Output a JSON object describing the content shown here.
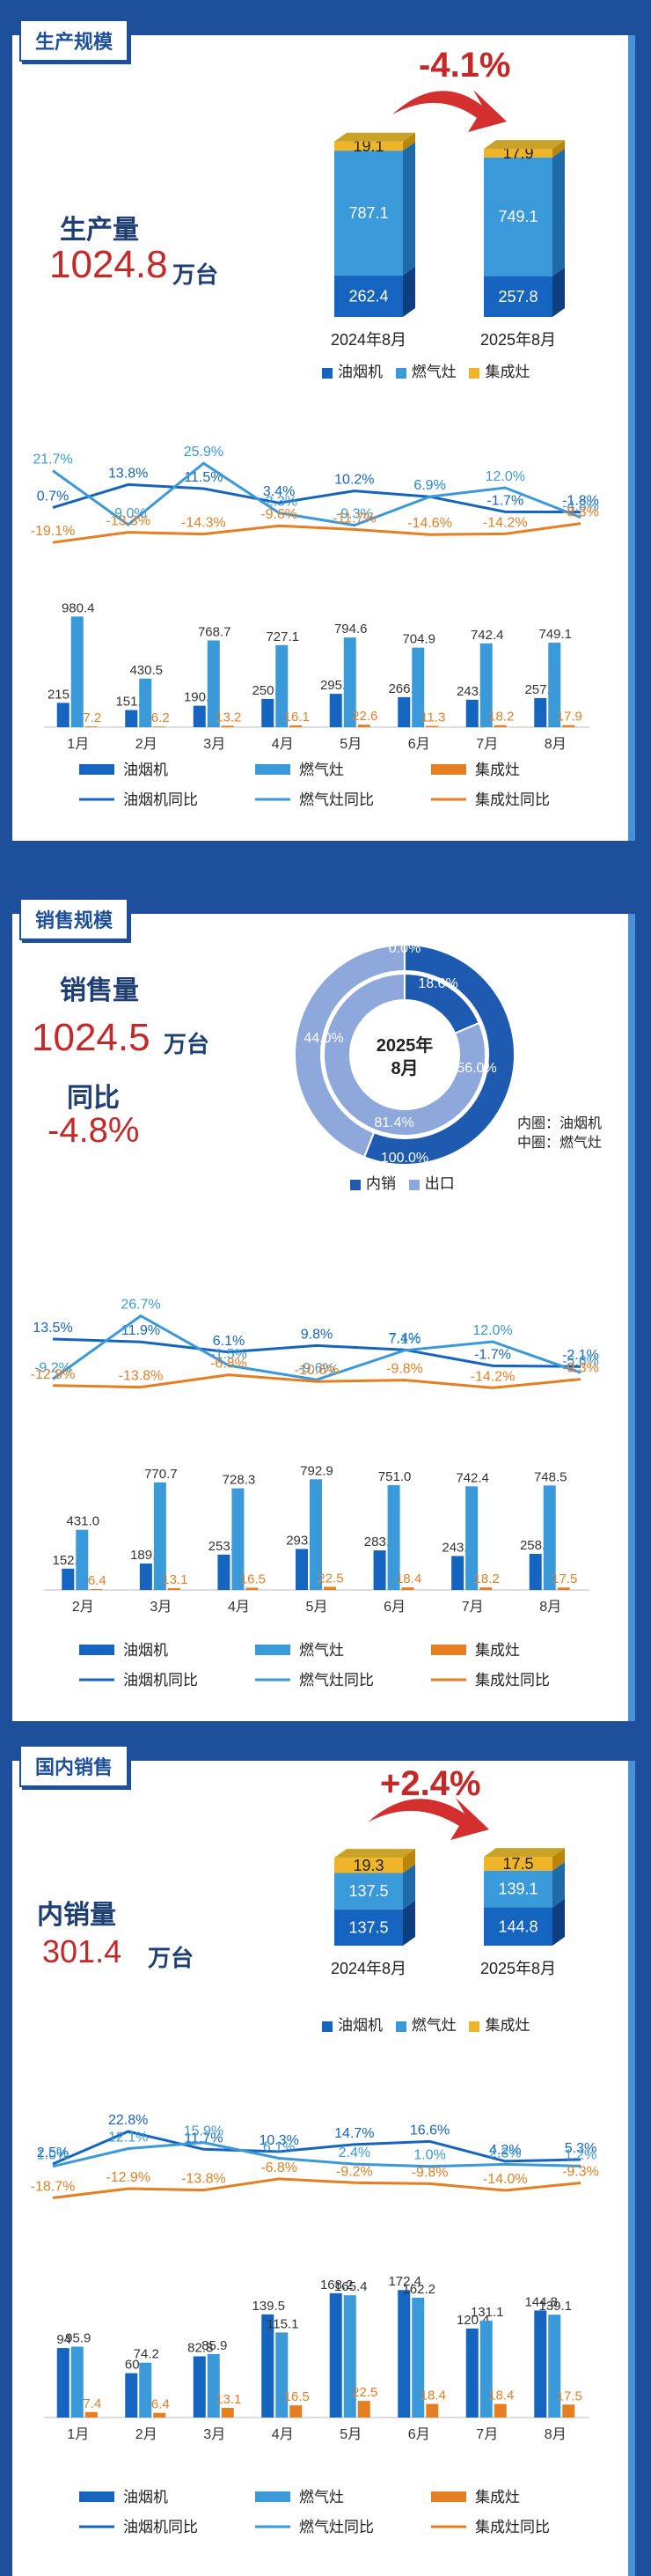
{
  "colors": {
    "hood": "#1565c0",
    "gas": "#3a9ad9",
    "integrated": "#e67e22",
    "integrated_bar": "#f0b429",
    "red": "#c62828",
    "navy": "#1d3f73"
  },
  "section1": {
    "tab": "生产规模",
    "label": "生产量",
    "value": "1024.8",
    "unit": "万台",
    "change": "-4.1%",
    "stack": {
      "legend": [
        "油烟机",
        "燃气灶",
        "集成灶"
      ],
      "columns": [
        {
          "label": "2024年8月",
          "hood": "262.4",
          "gas": "787.1",
          "integrated": "19.1"
        },
        {
          "label": "2025年8月",
          "hood": "257.8",
          "gas": "749.1",
          "integrated": "17.9"
        }
      ]
    }
  },
  "section2": {
    "tab": "销售规模",
    "label": "销售量",
    "value": "1024.5",
    "unit": "万台",
    "yoy_label": "同比",
    "yoy": "-4.8%",
    "donut": {
      "center_title": "2025年",
      "center_sub": "8月",
      "outer_labels": [
        "0.0%",
        "18.6%",
        "56.0%",
        "100.0%",
        "44.0%",
        "81.4%"
      ],
      "note_inner": "内圈：油烟机",
      "note_mid": "中圈：燃气灶",
      "legend": [
        "内销",
        "出口"
      ]
    }
  },
  "section3": {
    "tab": "国内销售",
    "label": "内销量",
    "value": "301.4",
    "unit": "万台",
    "change": "+2.4%",
    "stack": {
      "legend": [
        "油烟机",
        "燃气灶",
        "集成灶"
      ],
      "columns": [
        {
          "label": "2024年8月",
          "hood": "137.5",
          "gas": "137.5",
          "integrated": "19.3"
        },
        {
          "label": "2025年8月",
          "hood": "144.8",
          "gas": "139.1",
          "integrated": "17.5"
        }
      ]
    }
  },
  "chart_data": [
    {
      "type": "line",
      "title": "",
      "categories": [
        "1月",
        "2月",
        "3月",
        "4月",
        "5月",
        "6月",
        "7月",
        "8月"
      ],
      "series": [
        {
          "name": "油烟机同比",
          "labels": [
            "0.7%",
            "13.8%",
            "11.5%",
            "3.4%",
            "10.2%",
            "6.9%",
            "-1.7%",
            "-1.8%"
          ],
          "values": [
            0.7,
            13.8,
            11.5,
            3.4,
            10.2,
            6.9,
            -1.7,
            -1.8
          ]
        },
        {
          "name": "燃气灶同比",
          "labels": [
            "21.7%",
            "-9.0%",
            "25.9%",
            "-2.3%",
            "-9.3%",
            "6.9%",
            "12.0%",
            "-4.8%"
          ],
          "values": [
            21.7,
            -9.0,
            25.9,
            -2.3,
            -9.3,
            6.9,
            12.0,
            -4.8
          ]
        },
        {
          "name": "集成灶同比",
          "labels": [
            "-19.1%",
            "-13.3%",
            "-14.3%",
            "-9.6%",
            "-11.7%",
            "-14.6%",
            "-14.2%",
            "-8.3%"
          ],
          "values": [
            -19.1,
            -13.3,
            -14.3,
            -9.6,
            -11.7,
            -14.6,
            -14.2,
            -8.3
          ]
        }
      ]
    },
    {
      "type": "bar",
      "categories": [
        "1月",
        "2月",
        "3月",
        "4月",
        "5月",
        "6月",
        "7月",
        "8月"
      ],
      "legend": [
        "油烟机",
        "燃气灶",
        "集成灶",
        "油烟机同比",
        "燃气灶同比",
        "集成灶同比"
      ],
      "series": [
        {
          "name": "油烟机",
          "labels": [
            "215.5",
            "151.8",
            "190.4",
            "250.4",
            "295.4",
            "266.1",
            "243.4",
            "257.8"
          ],
          "values": [
            215.5,
            151.8,
            190.4,
            250.4,
            295.4,
            266.1,
            243.4,
            257.8
          ]
        },
        {
          "name": "燃气灶",
          "labels": [
            "980.4",
            "430.5",
            "768.7",
            "727.1",
            "794.6",
            "704.9",
            "742.4",
            "749.1"
          ],
          "values": [
            980.4,
            430.5,
            768.7,
            727.1,
            794.6,
            704.9,
            742.4,
            749.1
          ]
        },
        {
          "name": "集成灶",
          "labels": [
            "7.2",
            "6.2",
            "13.2",
            "16.1",
            "22.6",
            "11.3",
            "18.2",
            "17.9"
          ],
          "values": [
            7.2,
            6.2,
            13.2,
            16.1,
            22.6,
            11.3,
            18.2,
            17.9
          ]
        }
      ]
    },
    {
      "type": "pie",
      "rings": [
        {
          "name": "油烟机",
          "labels": [
            "18.6%",
            "81.4%"
          ],
          "values": [
            18.6,
            81.4
          ]
        },
        {
          "name": "燃气灶",
          "labels": [
            "56.0%",
            "44.0%"
          ],
          "values": [
            56.0,
            44.0
          ]
        }
      ]
    },
    {
      "type": "line",
      "categories": [
        "2月",
        "3月",
        "4月",
        "5月",
        "6月",
        "7月",
        "8月"
      ],
      "series": [
        {
          "name": "油烟机同比",
          "labels": [
            "13.5%",
            "11.9%",
            "6.1%",
            "9.8%",
            "7.4%",
            "-1.7%",
            "-2.1%"
          ],
          "values": [
            13.5,
            11.9,
            6.1,
            9.8,
            7.4,
            -1.7,
            -2.1
          ]
        },
        {
          "name": "燃气灶同比",
          "labels": [
            "-9.2%",
            "26.7%",
            "-1.5%",
            "-9.6%",
            "7.1%",
            "12.0%",
            "-5.6%"
          ],
          "values": [
            -9.2,
            26.7,
            -1.5,
            -9.6,
            7.1,
            12.0,
            -5.6
          ]
        },
        {
          "name": "集成灶同比",
          "labels": [
            "-12.9%",
            "-13.8%",
            "-6.8%",
            "-10.6%",
            "-9.8%",
            "-14.2%",
            "-9.3%"
          ],
          "values": [
            -12.9,
            -13.8,
            -6.8,
            -10.6,
            -9.8,
            -14.2,
            -9.3
          ]
        }
      ]
    },
    {
      "type": "bar",
      "categories": [
        "2月",
        "3月",
        "4月",
        "5月",
        "6月",
        "7月",
        "8月"
      ],
      "legend": [
        "油烟机",
        "燃气灶",
        "集成灶",
        "油烟机同比",
        "燃气灶同比",
        "集成灶同比"
      ],
      "series": [
        {
          "name": "油烟机",
          "labels": [
            "152.9",
            "189.5",
            "253.2",
            "293.7",
            "283.7",
            "243.4",
            "258.5"
          ],
          "values": [
            152.9,
            189.5,
            253.2,
            293.7,
            283.7,
            243.4,
            258.5
          ]
        },
        {
          "name": "燃气灶",
          "labels": [
            "431.0",
            "770.7",
            "728.3",
            "792.9",
            "751.0",
            "742.4",
            "748.5"
          ],
          "values": [
            431.0,
            770.7,
            728.3,
            792.9,
            751.0,
            742.4,
            748.5
          ]
        },
        {
          "name": "集成灶",
          "labels": [
            "6.4",
            "13.1",
            "16.5",
            "22.5",
            "18.4",
            "18.2",
            "17.5"
          ],
          "values": [
            6.4,
            13.1,
            16.5,
            22.5,
            18.4,
            18.2,
            17.5
          ]
        }
      ]
    },
    {
      "type": "line",
      "categories": [
        "1月",
        "2月",
        "3月",
        "4月",
        "5月",
        "6月",
        "7月",
        "8月"
      ],
      "series": [
        {
          "name": "油烟机同比",
          "labels": [
            "2.5%",
            "22.8%",
            "11.7%",
            "10.3%",
            "14.7%",
            "16.6%",
            "4.2%",
            "5.3%"
          ],
          "values": [
            2.5,
            22.8,
            11.7,
            10.3,
            14.7,
            16.6,
            4.2,
            5.3
          ]
        },
        {
          "name": "燃气灶同比",
          "labels": [
            "1.0%",
            "12.1%",
            "15.9%",
            "6.1%",
            "2.4%",
            "1.0%",
            "2.3%",
            "1.2%"
          ],
          "values": [
            1.0,
            12.1,
            15.9,
            6.1,
            2.4,
            1.0,
            2.3,
            1.2
          ]
        },
        {
          "name": "集成灶同比",
          "labels": [
            "-18.7%",
            "-12.9%",
            "-13.8%",
            "-6.8%",
            "-9.2%",
            "-9.8%",
            "-14.0%",
            "-9.3%"
          ],
          "values": [
            -18.7,
            -12.9,
            -13.8,
            -6.8,
            -9.2,
            -9.8,
            -14.0,
            -9.3
          ]
        }
      ]
    },
    {
      "type": "bar",
      "categories": [
        "1月",
        "2月",
        "3月",
        "4月",
        "5月",
        "6月",
        "7月",
        "8月"
      ],
      "legend": [
        "油烟机",
        "燃气灶",
        "集成灶",
        "油烟机同比",
        "燃气灶同比",
        "集成灶同比"
      ],
      "series": [
        {
          "name": "油烟机",
          "labels": [
            "94",
            "60",
            "82.8",
            "139.5",
            "168.2",
            "172.4",
            "120.4",
            "144.8"
          ],
          "values": [
            94,
            60,
            82.8,
            139.5,
            168.2,
            172.4,
            120.4,
            144.8
          ]
        },
        {
          "name": "燃气灶",
          "labels": [
            "95.9",
            "74.2",
            "85.9",
            "115.1",
            "165.4",
            "162.2",
            "131.1",
            "139.1"
          ],
          "values": [
            95.9,
            74.2,
            85.9,
            115.1,
            165.4,
            162.2,
            131.1,
            139.1
          ]
        },
        {
          "name": "集成灶",
          "labels": [
            "7.4",
            "6.4",
            "13.1",
            "16.5",
            "22.5",
            "18.4",
            "18.4",
            "17.5"
          ],
          "values": [
            7.4,
            6.4,
            13.1,
            16.5,
            22.5,
            18.4,
            18.4,
            17.5
          ]
        }
      ]
    }
  ]
}
